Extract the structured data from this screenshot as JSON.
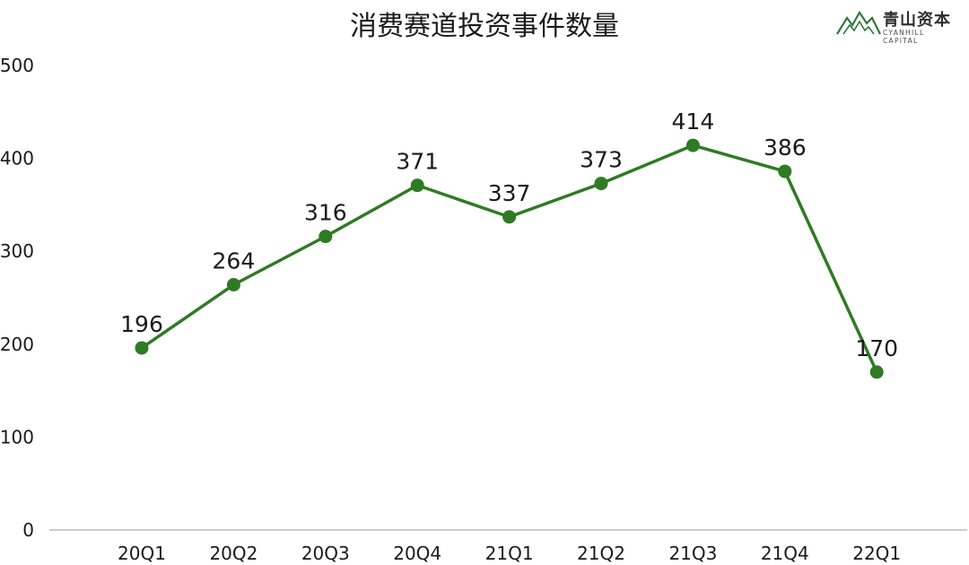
{
  "header": {
    "title": "消费赛道投资事件数量"
  },
  "logo": {
    "cn": "青山资本",
    "en": "CYANHILL CAPITAL"
  },
  "colors": {
    "line": "#2f7a24",
    "point": "#2f7a24",
    "axis": "#9a9a9a",
    "text": "#1a1a1a",
    "logo": "#2f7a3c"
  },
  "chart_data": {
    "type": "line",
    "title": "消费赛道投资事件数量",
    "categories": [
      "20Q1",
      "20Q2",
      "20Q3",
      "20Q4",
      "21Q1",
      "21Q2",
      "21Q3",
      "21Q4",
      "22Q1"
    ],
    "series": [
      {
        "values": [
          196,
          264,
          316,
          371,
          337,
          373,
          414,
          386,
          170
        ]
      }
    ],
    "yticks": [
      0,
      100,
      200,
      300,
      400,
      500
    ],
    "ylim": [
      0,
      500
    ],
    "xlabel": "",
    "ylabel": "",
    "grid": false,
    "data_labels": true
  }
}
